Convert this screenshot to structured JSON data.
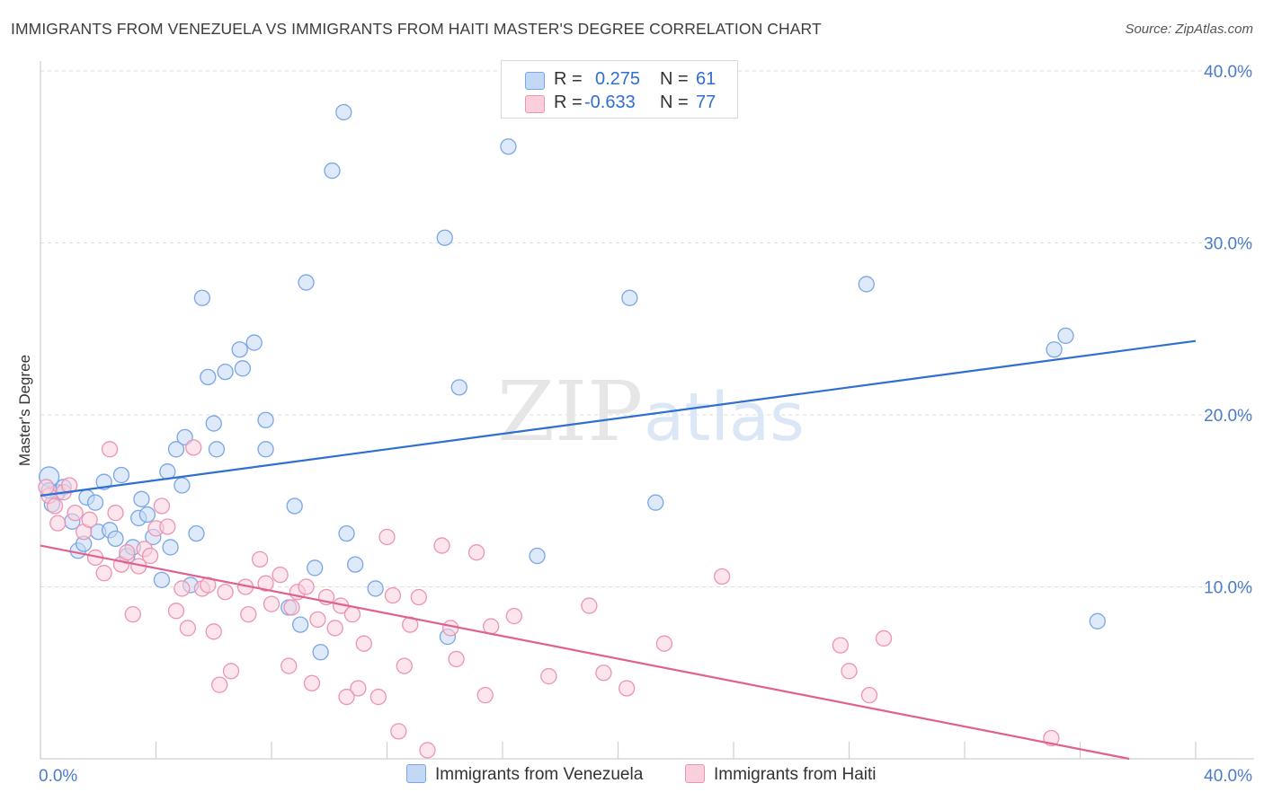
{
  "title": "IMMIGRANTS FROM VENEZUELA VS IMMIGRANTS FROM HAITI MASTER'S DEGREE CORRELATION CHART",
  "source": "Source: ZipAtlas.com",
  "watermark": {
    "zip": "ZIP",
    "atlas": "atlas"
  },
  "legend": {
    "r_label": "R =",
    "n_label": "N =",
    "rows": [
      {
        "r": "0.275",
        "n": "61",
        "color": "#7aa6e6",
        "fill": "#c3d8f4"
      },
      {
        "r": "-0.633",
        "n": "77",
        "color": "#ec94b2",
        "fill": "#f9cfdc"
      }
    ]
  },
  "chart_data": {
    "type": "scatter",
    "title": "IMMIGRANTS FROM VENEZUELA VS IMMIGRANTS FROM HAITI MASTER'S DEGREE CORRELATION CHART",
    "xlabel": "",
    "ylabel": "Master's Degree",
    "xlim": [
      0,
      40
    ],
    "ylim": [
      0,
      40
    ],
    "x_tick_labels": [
      "0.0%",
      "40.0%"
    ],
    "y_ticks": [
      10,
      20,
      30,
      40
    ],
    "y_tick_labels": [
      "10.0%",
      "20.0%",
      "30.0%",
      "40.0%"
    ],
    "grid": true,
    "series": [
      {
        "name": "Immigrants from Venezuela",
        "color": "#2f6fcf",
        "point_stroke": "#7aa6e6",
        "point_fill": "#c3d8f4",
        "trend": {
          "x": [
            0,
            40
          ],
          "y": [
            15.3,
            24.3
          ]
        },
        "points": [
          [
            0.3,
            16.4
          ],
          [
            0.4,
            14.8
          ],
          [
            0.6,
            15.5
          ],
          [
            0.8,
            15.8
          ],
          [
            1.1,
            13.8
          ],
          [
            1.3,
            12.1
          ],
          [
            1.5,
            12.5
          ],
          [
            1.6,
            15.2
          ],
          [
            1.9,
            14.9
          ],
          [
            2.0,
            13.2
          ],
          [
            2.2,
            16.1
          ],
          [
            2.4,
            13.3
          ],
          [
            2.6,
            12.8
          ],
          [
            2.8,
            16.5
          ],
          [
            3.0,
            11.8
          ],
          [
            3.2,
            12.3
          ],
          [
            3.4,
            14.0
          ],
          [
            3.5,
            15.1
          ],
          [
            3.7,
            14.2
          ],
          [
            3.9,
            12.9
          ],
          [
            4.2,
            10.4
          ],
          [
            4.4,
            16.7
          ],
          [
            4.5,
            12.3
          ],
          [
            4.7,
            18.0
          ],
          [
            4.9,
            15.9
          ],
          [
            5.0,
            18.7
          ],
          [
            5.2,
            10.1
          ],
          [
            5.4,
            13.1
          ],
          [
            5.6,
            26.8
          ],
          [
            5.8,
            22.2
          ],
          [
            6.0,
            19.5
          ],
          [
            6.1,
            18.0
          ],
          [
            6.4,
            22.5
          ],
          [
            6.9,
            23.8
          ],
          [
            7.0,
            22.7
          ],
          [
            7.4,
            24.2
          ],
          [
            7.8,
            19.7
          ],
          [
            7.8,
            18.0
          ],
          [
            8.6,
            8.8
          ],
          [
            8.8,
            14.7
          ],
          [
            9.2,
            27.7
          ],
          [
            9.5,
            11.1
          ],
          [
            9.7,
            6.2
          ],
          [
            10.1,
            34.2
          ],
          [
            10.5,
            37.6
          ],
          [
            10.6,
            13.1
          ],
          [
            10.9,
            11.3
          ],
          [
            11.6,
            9.9
          ],
          [
            14.1,
            7.1
          ],
          [
            14.0,
            30.3
          ],
          [
            14.5,
            21.6
          ],
          [
            16.2,
            35.6
          ],
          [
            17.2,
            11.8
          ],
          [
            20.4,
            26.8
          ],
          [
            21.3,
            14.9
          ],
          [
            28.6,
            27.6
          ],
          [
            35.1,
            23.8
          ],
          [
            35.5,
            24.6
          ],
          [
            36.6,
            8.0
          ],
          [
            9.0,
            7.8
          ],
          [
            0.3,
            15.6
          ]
        ]
      },
      {
        "name": "Immigrants from Haiti",
        "color": "#e0608e",
        "point_stroke": "#ec94b2",
        "point_fill": "#f9cfdc",
        "trend": {
          "x": [
            0,
            37.7
          ],
          "y": [
            12.4,
            0
          ]
        },
        "points": [
          [
            0.3,
            15.3
          ],
          [
            0.5,
            14.7
          ],
          [
            0.6,
            13.7
          ],
          [
            0.8,
            15.5
          ],
          [
            1.0,
            15.9
          ],
          [
            1.2,
            14.3
          ],
          [
            1.5,
            13.2
          ],
          [
            1.7,
            13.9
          ],
          [
            1.9,
            11.7
          ],
          [
            2.2,
            10.8
          ],
          [
            2.4,
            18.0
          ],
          [
            2.6,
            14.3
          ],
          [
            2.8,
            11.3
          ],
          [
            3.0,
            12.0
          ],
          [
            3.2,
            8.4
          ],
          [
            3.4,
            11.2
          ],
          [
            3.6,
            12.2
          ],
          [
            3.8,
            11.8
          ],
          [
            4.0,
            13.4
          ],
          [
            4.2,
            14.7
          ],
          [
            4.4,
            13.5
          ],
          [
            4.7,
            8.6
          ],
          [
            4.9,
            9.9
          ],
          [
            5.1,
            7.6
          ],
          [
            5.3,
            18.1
          ],
          [
            5.6,
            9.9
          ],
          [
            5.8,
            10.1
          ],
          [
            6.0,
            7.4
          ],
          [
            6.2,
            4.3
          ],
          [
            6.4,
            9.7
          ],
          [
            6.6,
            5.1
          ],
          [
            7.1,
            10.0
          ],
          [
            7.2,
            8.4
          ],
          [
            7.6,
            11.6
          ],
          [
            7.8,
            10.2
          ],
          [
            8.0,
            9.0
          ],
          [
            8.3,
            10.7
          ],
          [
            8.6,
            5.4
          ],
          [
            8.7,
            8.8
          ],
          [
            8.9,
            9.7
          ],
          [
            9.2,
            10.0
          ],
          [
            9.4,
            4.4
          ],
          [
            9.6,
            8.1
          ],
          [
            9.9,
            9.4
          ],
          [
            10.2,
            7.6
          ],
          [
            10.4,
            8.9
          ],
          [
            10.8,
            8.4
          ],
          [
            11.0,
            4.1
          ],
          [
            11.2,
            6.7
          ],
          [
            11.7,
            3.6
          ],
          [
            12.0,
            12.9
          ],
          [
            12.2,
            9.5
          ],
          [
            12.4,
            1.6
          ],
          [
            12.6,
            5.4
          ],
          [
            12.8,
            7.8
          ],
          [
            13.1,
            9.4
          ],
          [
            13.9,
            12.4
          ],
          [
            14.2,
            7.6
          ],
          [
            14.4,
            5.8
          ],
          [
            15.1,
            12.0
          ],
          [
            15.4,
            3.7
          ],
          [
            15.6,
            7.7
          ],
          [
            16.4,
            8.3
          ],
          [
            17.6,
            4.8
          ],
          [
            19.0,
            8.9
          ],
          [
            19.5,
            5.0
          ],
          [
            20.3,
            4.1
          ],
          [
            21.6,
            6.7
          ],
          [
            23.6,
            10.6
          ],
          [
            27.7,
            6.6
          ],
          [
            28.0,
            5.1
          ],
          [
            28.7,
            3.7
          ],
          [
            29.2,
            7.0
          ],
          [
            35.0,
            1.2
          ],
          [
            13.4,
            0.5
          ],
          [
            10.6,
            3.6
          ],
          [
            0.2,
            15.8
          ]
        ]
      }
    ]
  }
}
